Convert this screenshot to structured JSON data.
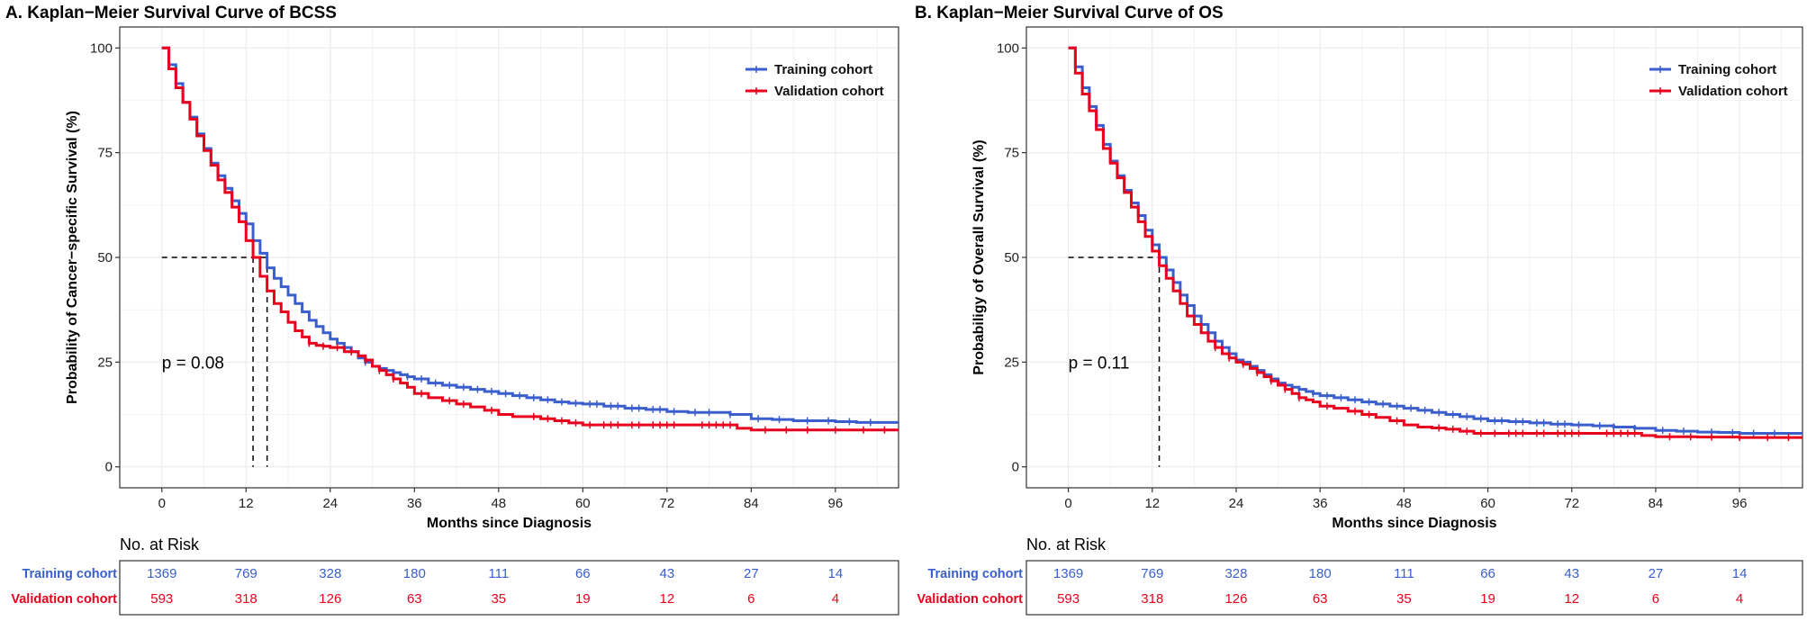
{
  "colors": {
    "training": "#3a5fcd",
    "validation": "#e8001c",
    "grid": "#ececec",
    "frame": "#333333"
  },
  "chart_data": [
    {
      "type": "line",
      "title": "A. Kaplan−Meier Survival Curve of BCSS",
      "xlabel": "Months since Diagnosis",
      "ylabel": "Probability of Cancer−specific Survival (%)",
      "xlim": [
        -6,
        105
      ],
      "ylim": [
        -5,
        105
      ],
      "xticks": [
        0,
        12,
        24,
        36,
        48,
        60,
        72,
        84,
        96
      ],
      "xtick_labels": [
        "0",
        "12",
        "24",
        "36",
        "48",
        "60",
        "72",
        "84",
        "96"
      ],
      "yticks": [
        0,
        25,
        50,
        75,
        100
      ],
      "ytick_labels": [
        "0",
        "25",
        "50",
        "75",
        "100"
      ],
      "legend": "top-right",
      "p_value": "p = 0.08",
      "median_lines": [
        13,
        15
      ],
      "series": [
        {
          "name": "Training cohort",
          "color_key": "training",
          "x": [
            0,
            1,
            2,
            3,
            4,
            5,
            6,
            7,
            8,
            9,
            10,
            11,
            12,
            13,
            14,
            15,
            16,
            17,
            18,
            19,
            20,
            21,
            22,
            23,
            24,
            25,
            26,
            27,
            28,
            29,
            30,
            31,
            32,
            33,
            34,
            35,
            36,
            38,
            40,
            42,
            44,
            46,
            48,
            50,
            52,
            54,
            56,
            58,
            60,
            63,
            66,
            69,
            72,
            75,
            78,
            81,
            84,
            87,
            90,
            93,
            96,
            99,
            105
          ],
          "y": [
            100,
            96,
            91.5,
            87,
            83.5,
            79.5,
            76,
            72.5,
            69.5,
            66.5,
            63.5,
            60.5,
            58,
            54,
            51,
            47.5,
            45,
            43,
            41,
            39,
            37,
            35,
            33.5,
            32,
            30.5,
            29.5,
            28.5,
            27.5,
            26,
            25,
            24,
            23.5,
            23,
            22.5,
            22,
            21.5,
            21,
            20,
            19.5,
            19,
            18.5,
            18,
            17.5,
            17,
            16.5,
            16,
            15.5,
            15.2,
            15,
            14.5,
            14,
            13.7,
            13.2,
            13,
            13,
            12.5,
            11.5,
            11.3,
            11,
            11,
            10.8,
            10.6,
            10.6
          ],
          "censor_x": [
            27,
            29,
            31,
            33,
            35,
            37,
            39,
            41,
            43,
            45,
            47,
            49,
            51,
            53,
            55,
            57,
            59,
            61,
            62,
            64,
            65,
            67,
            68,
            70,
            71,
            73,
            76,
            78,
            81,
            85,
            88,
            92,
            95,
            98,
            101
          ]
        },
        {
          "name": "Validation cohort",
          "color_key": "validation",
          "x": [
            0,
            1,
            2,
            3,
            4,
            5,
            6,
            7,
            8,
            9,
            10,
            11,
            12,
            13,
            14,
            15,
            16,
            17,
            18,
            19,
            20,
            21,
            22,
            23,
            24,
            26,
            28,
            29,
            30,
            31,
            32,
            33,
            34,
            35,
            36,
            38,
            40,
            42,
            44,
            46,
            48,
            50,
            52,
            54,
            56,
            58,
            60,
            62,
            66,
            70,
            75,
            80,
            82,
            84,
            90,
            96,
            99,
            105
          ],
          "y": [
            100,
            95,
            90.5,
            87,
            83,
            79,
            75.5,
            72,
            68.5,
            65.5,
            62,
            58.5,
            54,
            50,
            45.5,
            42,
            39,
            37,
            34.5,
            32.5,
            31,
            29.5,
            29,
            28.8,
            28.5,
            27.5,
            26.5,
            25.5,
            24,
            23,
            22,
            21,
            20,
            19,
            17.5,
            16.5,
            15.8,
            15,
            14.3,
            13.5,
            12.5,
            12,
            12,
            11.5,
            11,
            10.5,
            10,
            10,
            10,
            10,
            10,
            10,
            9.2,
            8.8,
            8.8,
            8.8,
            8.8,
            8.8
          ],
          "censor_x": [
            21,
            23,
            25,
            27,
            29,
            31,
            33,
            37,
            41,
            43,
            47,
            53,
            55,
            57,
            59,
            61,
            63,
            64,
            65,
            67,
            68,
            70,
            71,
            72,
            73,
            77,
            78,
            79,
            80,
            81,
            86,
            89,
            92,
            96,
            100,
            103
          ]
        }
      ],
      "risk_table": {
        "header": "No. at Risk",
        "times": [
          0,
          12,
          24,
          36,
          48,
          60,
          72,
          84,
          96
        ],
        "rows": [
          {
            "label": "Training cohort",
            "color_key": "training",
            "values": [
              "1369",
              "769",
              "328",
              "180",
              "111",
              "66",
              "43",
              "27",
              "14"
            ]
          },
          {
            "label": "Validation cohort",
            "color_key": "validation",
            "values": [
              "593",
              "318",
              "126",
              "63",
              "35",
              "19",
              "12",
              "6",
              "4"
            ]
          }
        ]
      }
    },
    {
      "type": "line",
      "title": "B. Kaplan−Meier Survival Curve of OS",
      "xlabel": "Months since Diagnosis",
      "ylabel": "Probabiligy of Overall Survival (%)",
      "xlim": [
        -6,
        105
      ],
      "ylim": [
        -5,
        105
      ],
      "xticks": [
        0,
        12,
        24,
        36,
        48,
        60,
        72,
        84,
        96
      ],
      "xtick_labels": [
        "0",
        "12",
        "24",
        "36",
        "48",
        "60",
        "72",
        "84",
        "96"
      ],
      "yticks": [
        0,
        25,
        50,
        75,
        100
      ],
      "ytick_labels": [
        "0",
        "25",
        "50",
        "75",
        "100"
      ],
      "legend": "top-right",
      "p_value": "p = 0.11",
      "median_lines": [
        13
      ],
      "series": [
        {
          "name": "Training cohort",
          "color_key": "training",
          "x": [
            0,
            1,
            2,
            3,
            4,
            5,
            6,
            7,
            8,
            9,
            10,
            11,
            12,
            13,
            14,
            15,
            16,
            17,
            18,
            19,
            20,
            21,
            22,
            23,
            24,
            25,
            26,
            27,
            28,
            29,
            30,
            31,
            32,
            33,
            34,
            35,
            36,
            38,
            40,
            42,
            44,
            46,
            48,
            50,
            52,
            54,
            56,
            58,
            60,
            63,
            66,
            69,
            72,
            75,
            78,
            81,
            84,
            87,
            90,
            93,
            96,
            99,
            105
          ],
          "y": [
            100,
            95.5,
            90.5,
            86,
            81.5,
            77,
            73,
            69.5,
            66,
            63,
            60,
            56.5,
            53,
            50,
            47,
            44,
            41,
            38.5,
            36,
            34,
            32,
            30,
            28.5,
            27,
            25.5,
            25,
            24,
            23,
            22,
            21,
            20,
            19.5,
            19,
            18.5,
            18,
            17.5,
            17,
            16.5,
            16,
            15.5,
            15,
            14.5,
            14,
            13.5,
            13,
            12.5,
            12,
            11.5,
            11,
            10.8,
            10.5,
            10.2,
            10,
            9.8,
            9.5,
            9.2,
            8.7,
            8.5,
            8.3,
            8.2,
            8,
            8,
            8
          ],
          "censor_x": [
            27,
            29,
            31,
            33,
            35,
            37,
            39,
            41,
            43,
            45,
            47,
            49,
            51,
            53,
            55,
            57,
            59,
            61,
            62,
            64,
            65,
            67,
            68,
            70,
            71,
            73,
            76,
            78,
            81,
            85,
            88,
            92,
            95,
            98,
            101
          ]
        },
        {
          "name": "Validation cohort",
          "color_key": "validation",
          "x": [
            0,
            1,
            2,
            3,
            4,
            5,
            6,
            7,
            8,
            9,
            10,
            11,
            12,
            13,
            14,
            15,
            16,
            17,
            18,
            19,
            20,
            21,
            22,
            23,
            24,
            25,
            26,
            27,
            28,
            29,
            30,
            31,
            32,
            33,
            34,
            35,
            36,
            38,
            40,
            42,
            44,
            46,
            48,
            50,
            52,
            54,
            56,
            58,
            60,
            64,
            68,
            72,
            76,
            80,
            82,
            84,
            90,
            96,
            99,
            105
          ],
          "y": [
            100,
            94,
            89,
            85,
            80.5,
            76,
            72.5,
            69,
            65.5,
            62,
            58.5,
            55,
            51.5,
            48,
            45,
            42,
            39,
            36,
            34,
            32,
            30,
            28.5,
            27,
            26,
            25,
            24.5,
            23.5,
            22.5,
            21.5,
            20.5,
            19.5,
            18.5,
            17.5,
            16.5,
            16,
            15.5,
            14.5,
            14,
            13.3,
            12.5,
            11.8,
            11,
            10,
            9.5,
            9.3,
            9,
            8.5,
            8,
            8,
            8,
            8,
            8,
            8,
            8,
            7.5,
            7.2,
            7.1,
            7,
            7,
            7
          ],
          "censor_x": [
            21,
            23,
            25,
            27,
            29,
            31,
            33,
            37,
            41,
            43,
            47,
            53,
            55,
            57,
            59,
            61,
            63,
            64,
            65,
            67,
            68,
            70,
            71,
            72,
            73,
            77,
            78,
            79,
            80,
            81,
            86,
            89,
            92,
            96,
            100,
            103
          ]
        }
      ],
      "risk_table": {
        "header": "No. at Risk",
        "times": [
          0,
          12,
          24,
          36,
          48,
          60,
          72,
          84,
          96
        ],
        "rows": [
          {
            "label": "Training cohort",
            "color_key": "training",
            "values": [
              "1369",
              "769",
              "328",
              "180",
              "111",
              "66",
              "43",
              "27",
              "14"
            ]
          },
          {
            "label": "Validation cohort",
            "color_key": "validation",
            "values": [
              "593",
              "318",
              "126",
              "63",
              "35",
              "19",
              "12",
              "6",
              "4"
            ]
          }
        ]
      }
    }
  ]
}
